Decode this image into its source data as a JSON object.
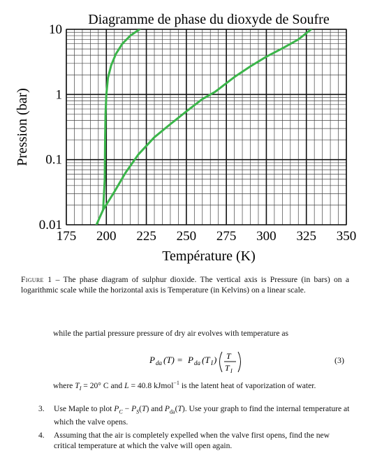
{
  "chart_data": {
    "type": "line",
    "title": "Diagramme de phase du dioxyde de Soufre",
    "xlabel": "Température (K)",
    "ylabel": "Pression (bar)",
    "xlim": [
      175,
      350
    ],
    "ylim": [
      0.01,
      10
    ],
    "yscale": "log",
    "grid": true,
    "x_ticks": [
      175,
      200,
      225,
      250,
      275,
      300,
      325,
      350
    ],
    "x_tick_labels": [
      "175",
      "200",
      "225",
      "250",
      "275",
      "300",
      "325",
      "350"
    ],
    "y_ticks": [
      0.01,
      0.1,
      1,
      10
    ],
    "y_tick_labels": [
      "0.01",
      "0.1",
      "1",
      "10"
    ],
    "series": [
      {
        "x": [
          193,
          198,
          205,
          212,
          220,
          230,
          240,
          250,
          260,
          268,
          280,
          290,
          300,
          310,
          320,
          328
        ],
        "y": [
          0.009,
          0.017,
          0.032,
          0.063,
          0.12,
          0.22,
          0.35,
          0.55,
          0.85,
          1.1,
          1.85,
          2.7,
          3.8,
          5.1,
          7.0,
          10.0
        ]
      },
      {
        "x": [
          198,
          199,
          199.2,
          199.5,
          200,
          201,
          203,
          206,
          210,
          215,
          222
        ],
        "y": [
          0.017,
          0.05,
          0.2,
          0.5,
          1.0,
          1.8,
          2.8,
          4.2,
          6.0,
          8.0,
          10.5
        ]
      }
    ],
    "line_color": "#3bb54a"
  },
  "caption": {
    "label": "Figure 1",
    "text": " – The phase diagram of sulphur dioxide. The vertical axis is Pressure (in bars) on a logarithmic scale while the horizontal axis is Temperature (in Kelvins) on a linear scale."
  },
  "body": {
    "intro": "while the partial pressure pressure of dry air evolves with temperature as",
    "equation": {
      "lhs_p": "P",
      "lhs_sub": "da",
      "lhs_arg": "(T) = ",
      "rhs_p": "P",
      "rhs_sub": "da",
      "rhs_arg_open": "(T",
      "rhs_arg_sub": "I",
      "rhs_arg_close": ")",
      "frac_num": "T",
      "frac_den": "T",
      "frac_den_sub": "I",
      "number": "(3)"
    },
    "where": "where T_I = 20° C and L = 40.8 kJmol⁻¹ is the latent heat of vaporization of water.",
    "items": [
      {
        "num": "3.",
        "text": "Use Maple to plot P_C − P_S(T) and P_da(T). Use your graph to find the internal temperature at which the valve opens."
      },
      {
        "num": "4.",
        "text": "Assuming that the air is completely expelled when the valve first opens, find the new critical temperature at which the valve will open again."
      }
    ]
  }
}
